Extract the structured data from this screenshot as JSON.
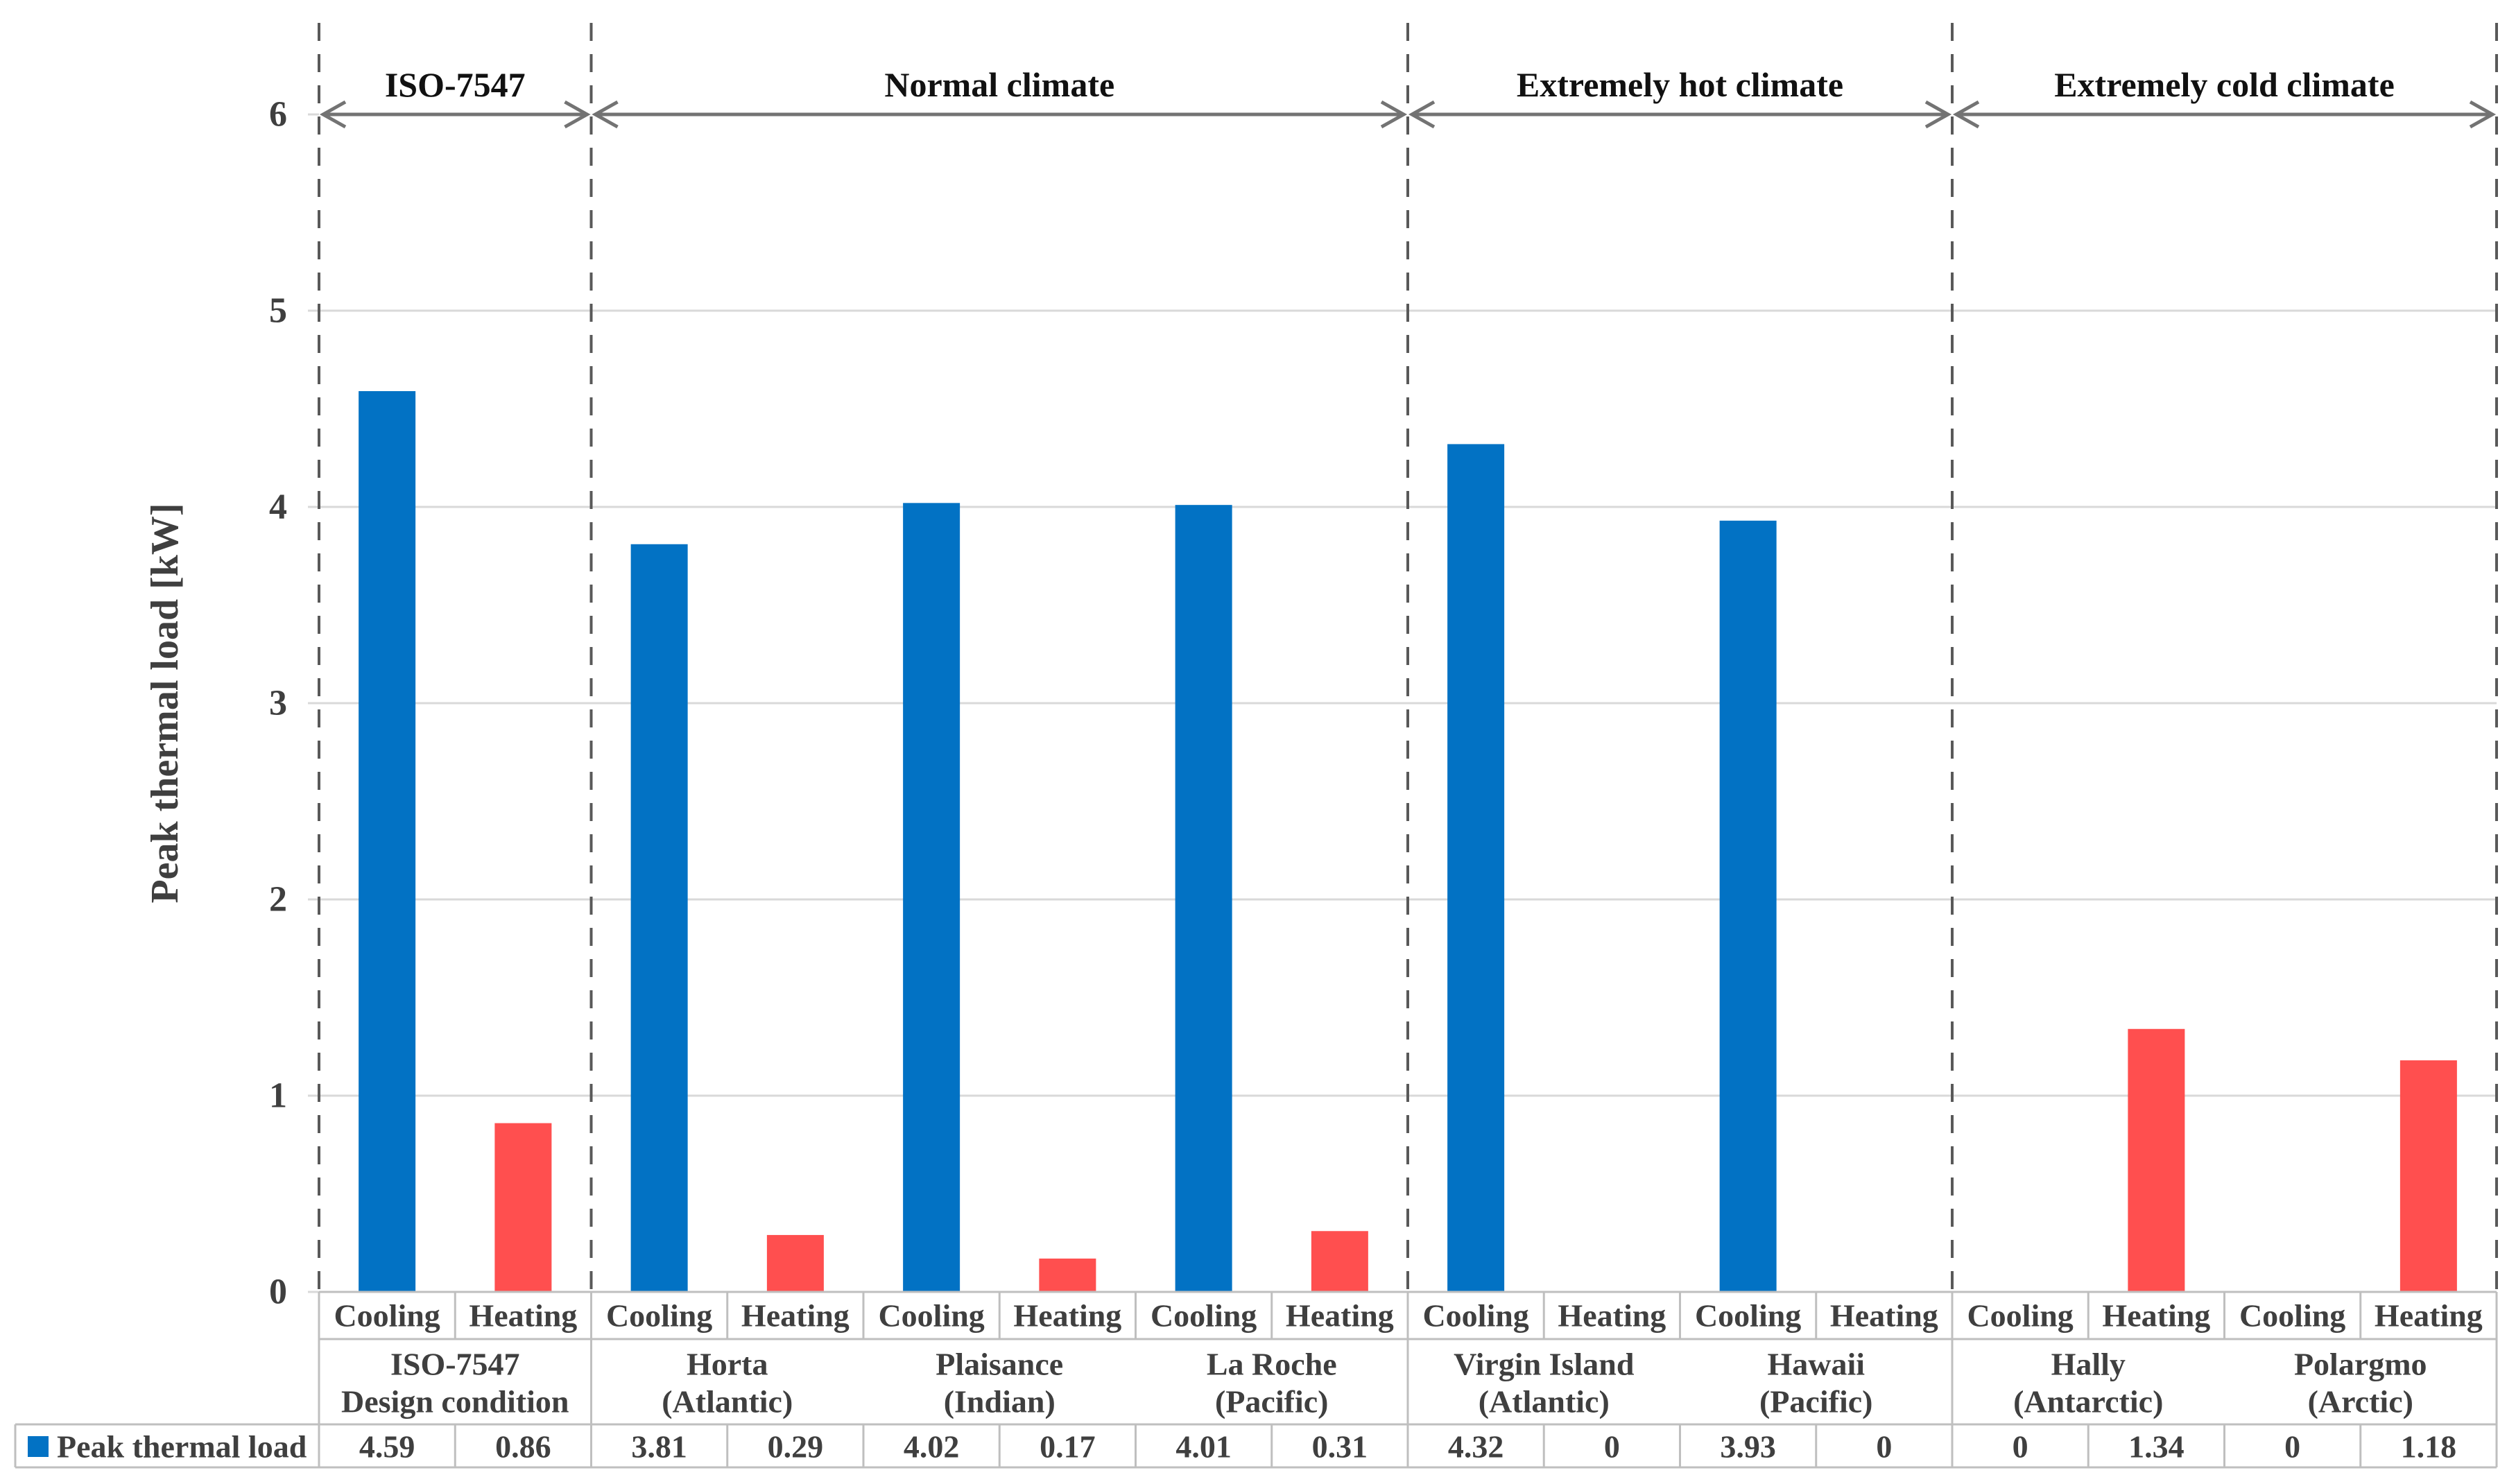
{
  "chart_data": {
    "type": "bar",
    "title": "",
    "ylabel": "Peak thermal load [kW]",
    "ylim": [
      0,
      6
    ],
    "ytick_labels": [
      "0",
      "1",
      "2",
      "3",
      "4",
      "5",
      "6"
    ],
    "grid": true,
    "legend_position": "bottom-left",
    "legend_label": "Peak thermal load",
    "legend_color": "#0272C4",
    "column_headers": [
      "Cooling",
      "Heating"
    ],
    "series": [
      {
        "name": "Cooling",
        "color": "#0272C4"
      },
      {
        "name": "Heating",
        "color": "#FF4F4F"
      }
    ],
    "sections": [
      {
        "label": "ISO-7547",
        "locations": [
          {
            "name_lines": [
              "ISO-7547",
              "Design condition"
            ],
            "cooling": 4.59,
            "heating": 0.86,
            "cooling_display": "4.59",
            "heating_display": "0.86"
          }
        ]
      },
      {
        "label": "Normal climate",
        "locations": [
          {
            "name_lines": [
              "Horta",
              "(Atlantic)"
            ],
            "cooling": 3.81,
            "heating": 0.29,
            "cooling_display": "3.81",
            "heating_display": "0.29"
          },
          {
            "name_lines": [
              "Plaisance",
              "(Indian)"
            ],
            "cooling": 4.02,
            "heating": 0.17,
            "cooling_display": "4.02",
            "heating_display": "0.17"
          },
          {
            "name_lines": [
              "La Roche",
              "(Pacific)"
            ],
            "cooling": 4.01,
            "heating": 0.31,
            "cooling_display": "4.01",
            "heating_display": "0.31"
          }
        ]
      },
      {
        "label": "Extremely hot climate",
        "locations": [
          {
            "name_lines": [
              "Virgin Island",
              "(Atlantic)"
            ],
            "cooling": 4.32,
            "heating": 0,
            "cooling_display": "4.32",
            "heating_display": "0"
          },
          {
            "name_lines": [
              "Hawaii",
              "(Pacific)"
            ],
            "cooling": 3.93,
            "heating": 0,
            "cooling_display": "3.93",
            "heating_display": "0"
          }
        ]
      },
      {
        "label": "Extremely cold climate",
        "locations": [
          {
            "name_lines": [
              "Hally",
              "(Antarctic)"
            ],
            "cooling": 0,
            "heating": 1.34,
            "cooling_display": "0",
            "heating_display": "1.34"
          },
          {
            "name_lines": [
              "Polargmo",
              "(Arctic)"
            ],
            "cooling": 0,
            "heating": 1.18,
            "cooling_display": "0",
            "heating_display": "1.18"
          }
        ]
      }
    ],
    "style_colors": {
      "gridline": "#D9D9D9",
      "table_border": "#BFBFBF",
      "separator_dash": "#595959",
      "arrow": "#737373",
      "header_text": "#111111",
      "text": "#3F3F3F"
    }
  }
}
